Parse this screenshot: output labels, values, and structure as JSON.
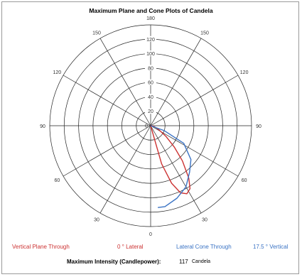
{
  "chart_data": {
    "type": "polar",
    "title": "Maximum Plane and Cone Plots of Candela",
    "radial_ticks": [
      20,
      40,
      60,
      80,
      100,
      120
    ],
    "radial_range": [
      0,
      140
    ],
    "radial_tick_labels": [
      "20",
      "40",
      "60",
      "80",
      "100",
      "120"
    ],
    "angle_labels": [
      "180",
      "150",
      "120",
      "90",
      "60",
      "30",
      "0",
      "30",
      "60",
      "90",
      "120",
      "150"
    ],
    "grid": true,
    "series": [
      {
        "name": "Vertical Plane Through",
        "color": "#cc3333",
        "points": [
          {
            "angle": 0,
            "value": 0
          },
          {
            "angle": 16,
            "value": 55
          },
          {
            "angle": 20,
            "value": 85
          },
          {
            "angle": 24,
            "value": 102
          },
          {
            "angle": 28,
            "value": 107
          },
          {
            "angle": 32,
            "value": 103
          },
          {
            "angle": 36,
            "value": 90
          },
          {
            "angle": 42,
            "value": 66
          },
          {
            "angle": 48,
            "value": 44
          },
          {
            "angle": 55,
            "value": 26
          },
          {
            "angle": 65,
            "value": 12
          },
          {
            "angle": 80,
            "value": 4
          },
          {
            "angle": 90,
            "value": 0
          }
        ]
      },
      {
        "name": "Lateral Cone Through",
        "color": "#3a73c4",
        "points": [
          {
            "angle": 90,
            "value": 0
          },
          {
            "angle": 70,
            "value": 20
          },
          {
            "angle": 62,
            "value": 52
          },
          {
            "angle": 50,
            "value": 73
          },
          {
            "angle": 40,
            "value": 84
          },
          {
            "angle": 30,
            "value": 98
          },
          {
            "angle": 20,
            "value": 107
          },
          {
            "angle": 10,
            "value": 114
          },
          {
            "angle": 5,
            "value": 114
          }
        ]
      }
    ]
  },
  "legend": {
    "red_label": "Vertical Plane Through",
    "red_value": "0 ° Lateral",
    "blue_label": "Lateral Cone Through",
    "blue_value": "17.5 ° Vertical"
  },
  "max_intensity": {
    "label": "Maximum Intensity (Candlepower):",
    "value": "117",
    "unit": "Candela"
  }
}
